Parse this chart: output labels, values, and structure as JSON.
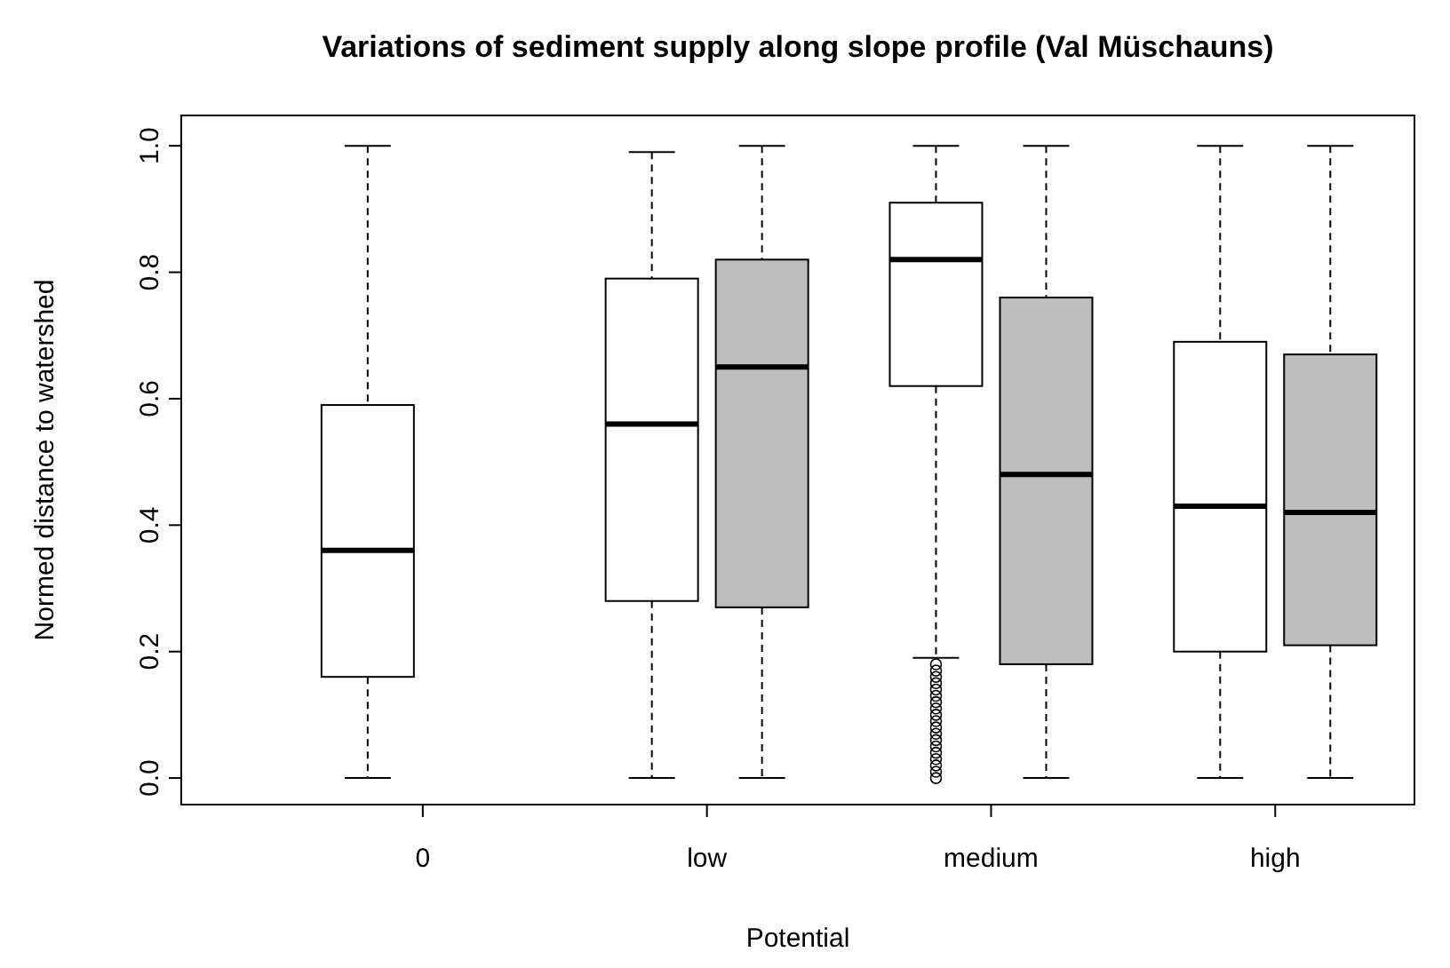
{
  "chart_data": {
    "type": "box",
    "title": "Variations of sediment supply along slope profile (Val Müschauns)",
    "xlabel": "Potential",
    "ylabel": "Normed distance to watershed",
    "categories": [
      "0",
      "low",
      "medium",
      "high"
    ],
    "ylim": [
      -0.042,
      1.048
    ],
    "yticks": [
      {
        "value": 0,
        "label": "0.0"
      },
      {
        "value": 0.2,
        "label": "0.2"
      },
      {
        "value": 0.4,
        "label": "0.4"
      },
      {
        "value": 0.6,
        "label": "0.6"
      },
      {
        "value": 0.8,
        "label": "0.8"
      },
      {
        "value": 1,
        "label": "1.0"
      }
    ],
    "grid": false,
    "series": [
      {
        "color": "#ffffff",
        "boxes": [
          {
            "low": 0,
            "q1": 0.16,
            "median": 0.36,
            "q3": 0.59,
            "high": 1.0
          },
          {
            "low": 0,
            "q1": 0.28,
            "median": 0.56,
            "q3": 0.79,
            "high": 0.99
          },
          {
            "low": 0.19,
            "q1": 0.62,
            "median": 0.82,
            "q3": 0.91,
            "high": 1.0,
            "outliers": [
              0,
              0.01,
              0.02,
              0.03,
              0.04,
              0.05,
              0.06,
              0.07,
              0.08,
              0.09,
              0.1,
              0.11,
              0.12,
              0.13,
              0.14,
              0.15,
              0.16,
              0.17,
              0.18
            ]
          },
          {
            "low": 0,
            "q1": 0.2,
            "median": 0.43,
            "q3": 0.69,
            "high": 1.0
          }
        ]
      },
      {
        "color": "#bebebe",
        "boxes": [
          null,
          {
            "low": 0,
            "q1": 0.27,
            "median": 0.65,
            "q3": 0.82,
            "high": 1.0
          },
          {
            "low": 0,
            "q1": 0.18,
            "median": 0.48,
            "q3": 0.76,
            "high": 1.0
          },
          {
            "low": 0,
            "q1": 0.21,
            "median": 0.42,
            "q3": 0.67,
            "high": 1.0
          }
        ]
      }
    ]
  }
}
